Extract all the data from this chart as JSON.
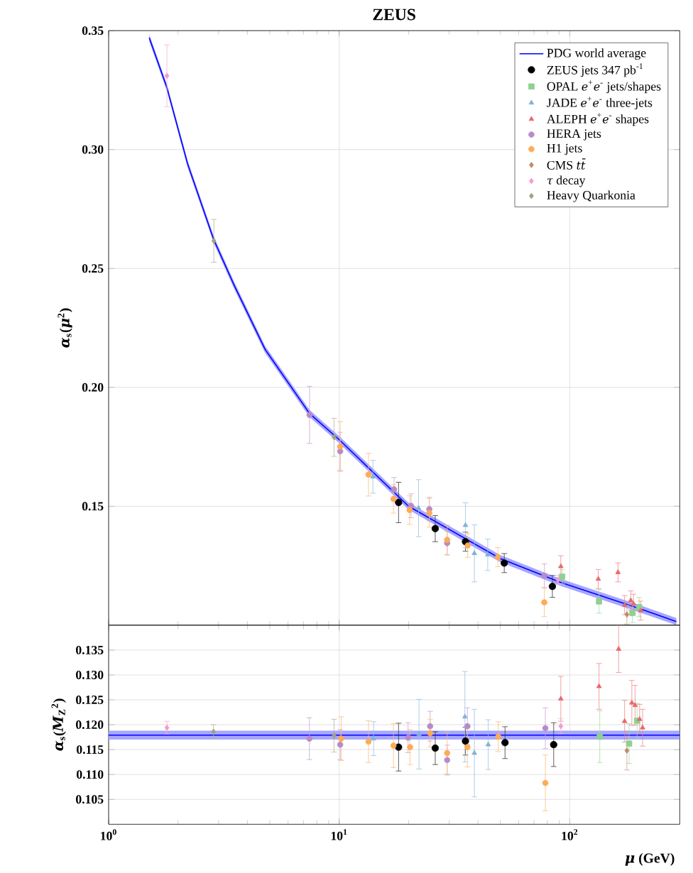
{
  "chart_data": [
    {
      "type": "scatter",
      "title": "ZEUS",
      "ylabel": "*α*$_{s}$(*μ*$^{2}$)",
      "log": "x",
      "xlim": [
        1,
        300
      ],
      "ylim": [
        0.1,
        0.35
      ],
      "xticks": [
        {
          "value": 1,
          "label": null
        },
        {
          "value": 10,
          "label": null
        },
        {
          "value": 100,
          "label": null
        }
      ],
      "yticks": [
        {
          "value": 0.15,
          "label": "0.15"
        },
        {
          "value": 0.2,
          "label": "0.20"
        },
        {
          "value": 0.25,
          "label": "0.25"
        },
        {
          "value": 0.3,
          "label": "0.30"
        },
        {
          "value": 0.35,
          "label": "0.35"
        }
      ],
      "tick_labels": "y",
      "grid": true,
      "legend": "top right",
      "series": [
        {
          "name": "PDG world average",
          "type": "line",
          "color": "#0000ff",
          "x": [
            1.5,
            1.79,
            2.2,
            2.86,
            3.5,
            4.77,
            7.44,
            10,
            20,
            50,
            91.2,
            200,
            290
          ],
          "values": [
            0.347,
            0.326,
            0.294,
            0.262,
            0.243,
            0.216,
            0.189,
            0.178,
            0.15,
            0.128,
            0.118,
            0.107,
            0.1015
          ],
          "lower": [
            0.3455,
            0.3245,
            0.2925,
            0.2605,
            0.2415,
            0.2145,
            0.1875,
            0.1765,
            0.1485,
            0.1265,
            0.1165,
            0.1055,
            0.1
          ],
          "upper": [
            0.3485,
            0.3275,
            0.2955,
            0.2635,
            0.2445,
            0.2175,
            0.1905,
            0.1795,
            0.1515,
            0.1295,
            0.1195,
            0.1085,
            0.103
          ]
        },
        {
          "name": "ZEUS jets 347 pb$^{-1}$",
          "color": "#000000",
          "marker": "circle",
          "x": [
            18.1,
            26.1,
            35.3,
            52.0,
            84.1
          ],
          "values": [
            0.1516,
            0.1406,
            0.1351,
            0.1261,
            0.1163
          ],
          "errors": [
            0.0085,
            0.0055,
            0.004,
            0.004,
            0.0046
          ]
        },
        {
          "name": "OPAL *e*$^{+}$*e*$^{-}$ jets/shapes",
          "color": "#8fd18f",
          "marker": "square",
          "x": [
            92.7,
            134,
            187,
            200
          ],
          "values": [
            0.1204,
            0.11,
            0.1051,
            0.1076
          ],
          "errors": [
            0.003,
            0.005,
            0.004,
            0.004
          ]
        },
        {
          "name": "JADE *e*$^{+}$*e*$^{-}$ three-jets",
          "color": "#7fb2d9",
          "marker": "triangle",
          "x": [
            14.0,
            22.1,
            35.3,
            38.6,
            44.1
          ],
          "values": [
            0.1624,
            0.1492,
            0.142,
            0.1302,
            0.1296
          ],
          "errors": [
            0.0069,
            0.012,
            0.0095,
            0.012,
            0.0066
          ]
        },
        {
          "name": "ALEPH *e*$^{+}$*e*$^{-}$ shapes",
          "color": "#e8696b",
          "marker": "triangle",
          "x": [
            91.5,
            133,
            162,
            173,
            184,
            189,
            203
          ],
          "values": [
            0.1247,
            0.1194,
            0.1222,
            0.1084,
            0.1104,
            0.109,
            0.1061
          ],
          "errors": [
            0.0045,
            0.004,
            0.004,
            0.004,
            0.004,
            0.004,
            0.004
          ]
        },
        {
          "name": "HERA jets",
          "color": "#b98ac8",
          "marker": "circle",
          "x": [
            7.44,
            10.1,
            17.3,
            20.5,
            24.6,
            29.4,
            77.6
          ],
          "values": [
            0.1884,
            0.1731,
            0.1571,
            0.1502,
            0.1488,
            0.1345,
            0.1208
          ],
          "errors": [
            0.012,
            0.008,
            0.005,
            0.005,
            0.005,
            0.005,
            0.005
          ]
        },
        {
          "name": "H1 jets",
          "color": "#ffaa55",
          "marker": "circle",
          "x": [
            10.1,
            13.4,
            17.2,
            20.2,
            24.6,
            29.4,
            36.1,
            48.8,
            77.6
          ],
          "values": [
            0.1751,
            0.1633,
            0.1531,
            0.1484,
            0.1472,
            0.1359,
            0.1335,
            0.1286,
            0.1096
          ],
          "errors": [
            0.0105,
            0.009,
            0.006,
            0.006,
            0.006,
            0.0062,
            0.005,
            0.004,
            0.006
          ]
        },
        {
          "name": "CMS *tt̄*",
          "color": "#c08a6a",
          "marker": "diamond",
          "x": [
            177
          ],
          "values": [
            0.1045
          ],
          "errors": [
            0.004
          ]
        },
        {
          "name": "*τ* decay",
          "color": "#f59ad0",
          "marker": "diamond",
          "x": [
            1.79,
            89.0
          ],
          "values": [
            0.331,
            0.119
          ],
          "errors": [
            0.013,
            0.002
          ]
        },
        {
          "name": "Heavy Quarkonia",
          "color": "#a3a37a",
          "marker": "diamond",
          "x": [
            2.86,
            9.5
          ],
          "values": [
            0.2616,
            0.179
          ],
          "errors": [
            0.009,
            0.008
          ]
        }
      ]
    },
    {
      "type": "scatter",
      "xlabel": "*μ* (GeV)",
      "ylabel": "*α*$_{s}$(*M*$_{Z}$$^{2}$)",
      "log": "x",
      "xlim": [
        1,
        300
      ],
      "ylim": [
        0.1,
        0.14
      ],
      "xticks": [
        {
          "value": 1,
          "label": "10$^{0}$"
        },
        {
          "value": 10,
          "label": "10$^{1}$"
        },
        {
          "value": 100,
          "label": "10$^{2}$"
        }
      ],
      "yticks": [
        0.105,
        {
          "value": 0.11,
          "label": "0.110"
        },
        0.115,
        {
          "value": 0.12,
          "label": "0.120"
        },
        0.125,
        {
          "value": 0.13,
          "label": "0.130"
        },
        0.135
      ],
      "grid": true,
      "series": [
        {
          "type": "line",
          "color": "#0000ff",
          "x": [
            1,
            300
          ],
          "values": [
            0.1179,
            0.1179
          ],
          "lower": [
            0.117,
            0.117
          ],
          "upper": [
            0.1188,
            0.1188
          ]
        },
        {
          "color": "#000000",
          "marker": "circle",
          "x": [
            18.1,
            26.1,
            35.3,
            52.4,
            85.2
          ],
          "values": [
            0.1155,
            0.1153,
            0.1167,
            0.1164,
            0.116
          ],
          "errors": [
            0.0048,
            0.0033,
            0.0028,
            0.0032,
            0.0044
          ]
        },
        {
          "color": "#8fd18f",
          "marker": "square",
          "x": [
            135,
            181,
            196
          ],
          "values": [
            0.1176,
            0.1162,
            0.1208
          ],
          "errors": [
            0.0052,
            0.004,
            0.0035
          ]
        },
        {
          "color": "#7fb2d9",
          "marker": "triangle",
          "x": [
            14.1,
            22.2,
            35.1,
            38.6,
            44.3
          ],
          "values": [
            0.1172,
            0.1181,
            0.1216,
            0.1143,
            0.116
          ],
          "errors": [
            0.0034,
            0.007,
            0.0091,
            0.0088,
            0.005
          ]
        },
        {
          "color": "#e8696b",
          "marker": "triangle",
          "x": [
            91.5,
            134,
            163,
            173,
            186,
            192,
            201,
            207
          ],
          "values": [
            0.1252,
            0.1277,
            0.1352,
            0.1207,
            0.1244,
            0.1239,
            0.1211,
            0.1194
          ],
          "errors": [
            0.0045,
            0.0046,
            0.0047,
            0.0042,
            0.0045,
            0.004,
            0.003,
            0.0037
          ]
        },
        {
          "color": "#b98ac8",
          "marker": "circle",
          "x": [
            7.43,
            10.1,
            19.9,
            24.8,
            29.4,
            36.0,
            78.4
          ],
          "values": [
            0.1172,
            0.116,
            0.1174,
            0.1197,
            0.1129,
            0.1197,
            0.1193
          ],
          "errors": [
            0.0042,
            0.003,
            0.003,
            0.003,
            0.003,
            0.0037,
            0.0041
          ]
        },
        {
          "color": "#ffaa55",
          "marker": "circle",
          "x": [
            10.2,
            13.4,
            17.2,
            20.3,
            24.8,
            29.4,
            36.0,
            49.0,
            78.4
          ],
          "values": [
            0.1172,
            0.1166,
            0.1158,
            0.1155,
            0.1183,
            0.1143,
            0.1155,
            0.1176,
            0.1083
          ],
          "errors": [
            0.0044,
            0.0042,
            0.0044,
            0.0035,
            0.0028,
            0.0042,
            0.004,
            0.003,
            0.0056
          ]
        },
        {
          "color": "#c08a6a",
          "marker": "diamond",
          "x": [
            177
          ],
          "values": [
            0.1148
          ],
          "errors": [
            0.0039
          ]
        },
        {
          "color": "#f59ad0",
          "marker": "diamond",
          "x": [
            1.79,
            91.5
          ],
          "values": [
            0.1194,
            0.1197
          ],
          "errors": [
            0.0013,
            0.0015
          ]
        },
        {
          "color": "#a3a37a",
          "marker": "diamond",
          "x": [
            2.85,
            9.5
          ],
          "values": [
            0.1186,
            0.1178
          ],
          "errors": [
            0.0014,
            0.0033
          ]
        }
      ]
    }
  ]
}
